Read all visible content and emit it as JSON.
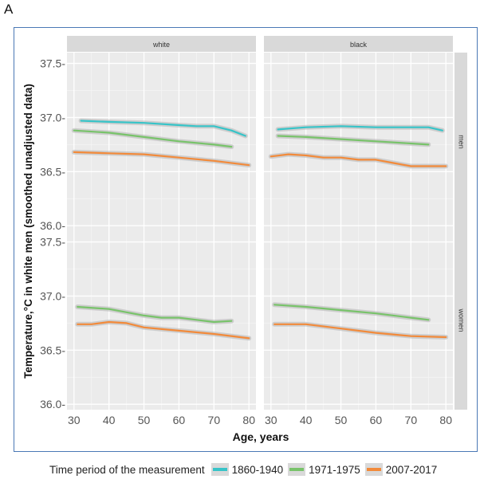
{
  "panel_label": "A",
  "chart_data": {
    "type": "line",
    "title": "",
    "xlabel": "Age, years",
    "ylabel": "Temperature,°C in white men (smoothed unadjusted data)",
    "xlim": [
      28,
      82
    ],
    "ylim": [
      35.95,
      37.6
    ],
    "x_ticks": [
      30,
      40,
      50,
      60,
      70,
      80
    ],
    "y_ticks": [
      36.0,
      36.5,
      37.0,
      37.5
    ],
    "y_tick_labels": [
      "36.0-",
      "36.5-",
      "37.0-",
      "37.5-"
    ],
    "grid": true,
    "legend_position": "bottom",
    "legend_title": "Time period of the measurement",
    "column_facets": [
      "white",
      "black"
    ],
    "row_facets": [
      "men",
      "women"
    ],
    "series_styles": [
      {
        "name": "1860-1940",
        "color": "#37c4c8"
      },
      {
        "name": "1971-1975",
        "color": "#78c36a"
      },
      {
        "name": "2007-2017",
        "color": "#f28a3a"
      }
    ],
    "panels": [
      {
        "column": "white",
        "row": "men",
        "series": [
          {
            "name": "1860-1940",
            "x": [
              32,
              40,
              50,
              60,
              65,
              70,
              75,
              79
            ],
            "y": [
              36.97,
              36.96,
              36.95,
              36.93,
              36.92,
              36.92,
              36.88,
              36.83
            ]
          },
          {
            "name": "1971-1975",
            "x": [
              30,
              40,
              50,
              60,
              70,
              75
            ],
            "y": [
              36.88,
              36.86,
              36.82,
              36.78,
              36.75,
              36.73
            ]
          },
          {
            "name": "2007-2017",
            "x": [
              30,
              40,
              50,
              60,
              70,
              80
            ],
            "y": [
              36.68,
              36.67,
              36.66,
              36.63,
              36.6,
              36.56
            ]
          }
        ]
      },
      {
        "column": "black",
        "row": "men",
        "series": [
          {
            "name": "1860-1940",
            "x": [
              32,
              40,
              50,
              60,
              70,
              75,
              79
            ],
            "y": [
              36.89,
              36.91,
              36.92,
              36.91,
              36.91,
              36.91,
              36.88
            ]
          },
          {
            "name": "1971-1975",
            "x": [
              32,
              40,
              50,
              60,
              70,
              75
            ],
            "y": [
              36.83,
              36.82,
              36.8,
              36.78,
              36.76,
              36.75
            ]
          },
          {
            "name": "2007-2017",
            "x": [
              30,
              35,
              40,
              45,
              50,
              55,
              60,
              65,
              70,
              75,
              80
            ],
            "y": [
              36.64,
              36.66,
              36.65,
              36.63,
              36.63,
              36.61,
              36.61,
              36.58,
              36.55,
              36.55,
              36.55
            ]
          }
        ]
      },
      {
        "column": "white",
        "row": "women",
        "series": [
          {
            "name": "1971-1975",
            "x": [
              31,
              40,
              50,
              55,
              60,
              65,
              70,
              75
            ],
            "y": [
              36.9,
              36.88,
              36.82,
              36.8,
              36.8,
              36.78,
              36.76,
              36.77
            ]
          },
          {
            "name": "2007-2017",
            "x": [
              31,
              35,
              40,
              45,
              50,
              60,
              70,
              80
            ],
            "y": [
              36.74,
              36.74,
              36.76,
              36.75,
              36.71,
              36.68,
              36.65,
              36.61
            ]
          }
        ]
      },
      {
        "column": "black",
        "row": "women",
        "series": [
          {
            "name": "1971-1975",
            "x": [
              31,
              40,
              50,
              60,
              70,
              75
            ],
            "y": [
              36.92,
              36.9,
              36.87,
              36.84,
              36.8,
              36.78
            ]
          },
          {
            "name": "2007-2017",
            "x": [
              31,
              40,
              50,
              60,
              70,
              80
            ],
            "y": [
              36.74,
              36.74,
              36.7,
              36.66,
              36.63,
              36.62
            ]
          }
        ]
      }
    ]
  }
}
